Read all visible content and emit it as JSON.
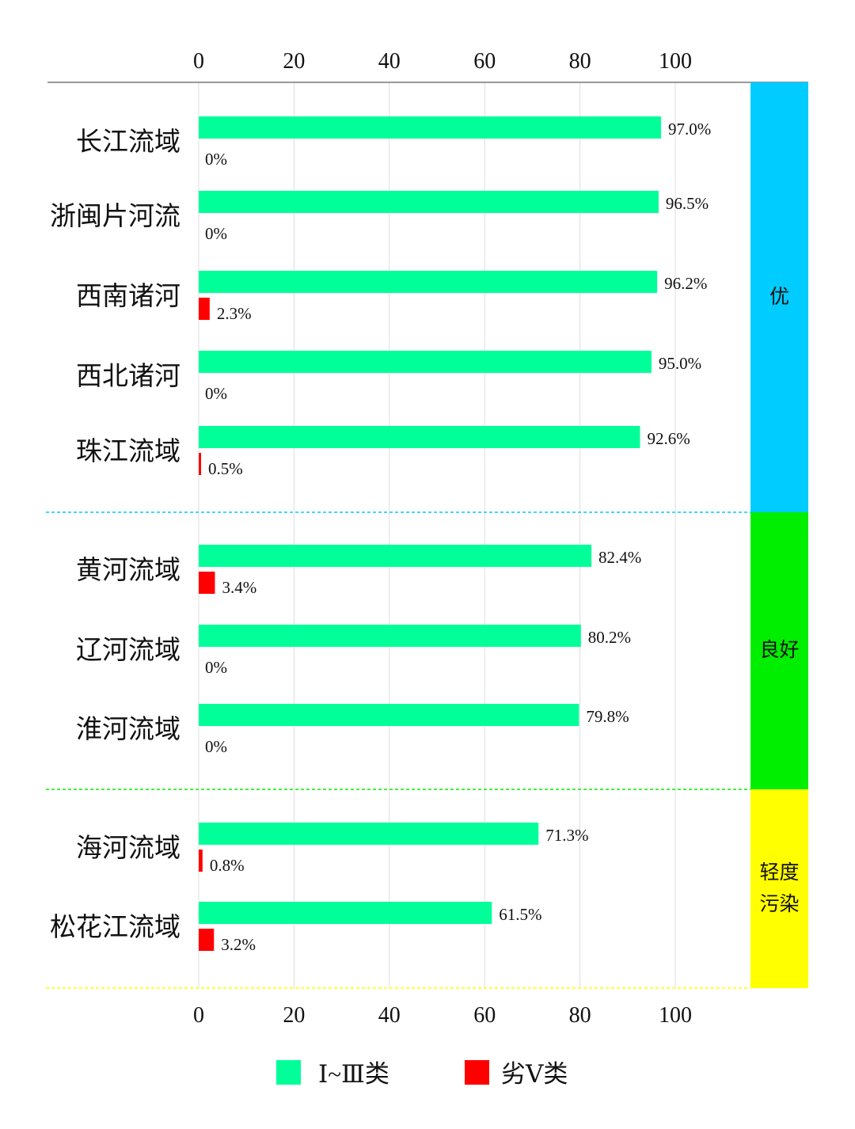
{
  "chart_data": {
    "type": "bar",
    "orientation": "horizontal",
    "categories": [
      "长江流域",
      "浙闽片河流",
      "西南诸河",
      "西北诸河",
      "珠江流域",
      "黄河流域",
      "辽河流域",
      "淮河流域",
      "海河流域",
      "松花江流域"
    ],
    "series": [
      {
        "name": "Ⅰ~Ⅲ类",
        "color": "#00FF99",
        "values": [
          97.0,
          96.5,
          96.2,
          95.0,
          92.6,
          82.4,
          80.2,
          79.8,
          71.3,
          61.5
        ],
        "labels": [
          "97.0%",
          "96.5%",
          "96.2%",
          "95.0%",
          "92.6%",
          "82.4%",
          "80.2%",
          "79.8%",
          "71.3%",
          "61.5%"
        ]
      },
      {
        "name": "劣Ⅴ类",
        "color": "#FF0000",
        "values": [
          0,
          0,
          2.3,
          0,
          0.5,
          3.4,
          0,
          0,
          0.8,
          3.2
        ],
        "labels": [
          "0%",
          "0%",
          "2.3%",
          "0%",
          "0.5%",
          "3.4%",
          "0%",
          "0%",
          "0.8%",
          "3.2%"
        ]
      }
    ],
    "xlim": [
      0,
      100
    ],
    "xticks": [
      "0",
      "20",
      "40",
      "60",
      "80",
      "100"
    ],
    "grid": true,
    "legend_position": "bottom",
    "groups": [
      {
        "label": "优",
        "color": "#00CCFF",
        "count": 5
      },
      {
        "label": "良好",
        "color": "#00EE00",
        "count": 3
      },
      {
        "label": "轻度污染",
        "label_lines": [
          "轻度",
          "污染"
        ],
        "color": "#FFFF00",
        "count": 2
      }
    ]
  }
}
